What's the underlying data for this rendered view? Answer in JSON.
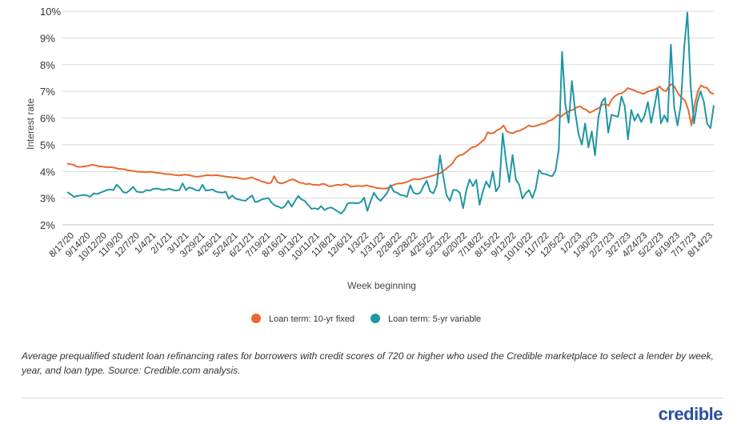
{
  "chart_data": {
    "type": "line",
    "ylabel": "Interest rate",
    "xlabel": "Week beginning",
    "ylim": [
      2,
      10
    ],
    "yticks": [
      "2%",
      "3%",
      "4%",
      "5%",
      "6%",
      "7%",
      "8%",
      "9%",
      "10%"
    ],
    "grid": true,
    "legend_position": "bottom",
    "x_tick_labels": [
      "8/17/20",
      "9/14/20",
      "10/12/20",
      "11/9/20",
      "12/7/20",
      "1/4/21",
      "2/1/21",
      "3/1/21",
      "3/29/21",
      "4/26/21",
      "5/24/21",
      "6/21/21",
      "7/19/21",
      "8/16/21",
      "9/13/21",
      "10/11/21",
      "11/8/21",
      "12/6/21",
      "1/3/22",
      "1/31/22",
      "2/28/22",
      "3/28/22",
      "4/25/22",
      "5/23/22",
      "6/20/22",
      "7/18/22",
      "8/15/22",
      "9/12/22",
      "10/10/22",
      "11/7/22",
      "12/5/22",
      "1/2/23",
      "1/30/23",
      "2/27/23",
      "3/27/23",
      "4/24/23",
      "5/22/23",
      "6/19/23",
      "7/17/23",
      "8/14/23"
    ],
    "series": [
      {
        "name": "Loan term: 10-yr fixed",
        "color": "#e8682d",
        "values": [
          4.29,
          4.25,
          4.2,
          4.22,
          4.24,
          4.2,
          4.15,
          4.12,
          4.14,
          4.06,
          4.02,
          3.98,
          3.97,
          3.98,
          3.95,
          3.93,
          3.88,
          3.86,
          3.88,
          3.84,
          3.8,
          3.82,
          3.86,
          3.85,
          3.86,
          3.83,
          3.79,
          3.77,
          3.74,
          3.72,
          3.76,
          3.69,
          3.64,
          3.58,
          3.79,
          3.55,
          3.6,
          3.68,
          3.62,
          3.54,
          3.5,
          3.52,
          3.46,
          3.47,
          3.5,
          3.5,
          3.43,
          3.46,
          3.45,
          3.48,
          3.43,
          3.38,
          3.37,
          3.36,
          3.47,
          3.55,
          3.55,
          3.62,
          3.72,
          3.7,
          3.73,
          3.8,
          3.85,
          3.92,
          4.1,
          4.28,
          4.55,
          4.62,
          4.78,
          4.93,
          4.96,
          5.15,
          5.46,
          5.42,
          5.55,
          5.72,
          5.47,
          5.45,
          5.5,
          5.58,
          5.72,
          5.68,
          5.74,
          5.78,
          5.88,
          5.92,
          6.12,
          6.05,
          6.22,
          6.32,
          6.44,
          6.31,
          6.2,
          6.38,
          6.52,
          6.46,
          6.82,
          6.92,
          7.12,
          7.04,
          6.94,
          6.98,
          7.05,
          7.18,
          7.0,
          7.28,
          6.88,
          6.65,
          5.72,
          7.22,
          7.12,
          6.94
        ],
        "points": [
          4.29,
          4.27,
          4.24,
          4.18,
          4.17,
          4.18,
          4.2,
          4.22,
          4.25,
          4.22,
          4.19,
          4.18,
          4.16,
          4.15,
          4.16,
          4.13,
          4.1,
          4.09,
          4.08,
          4.04,
          4.03,
          4.01,
          3.99,
          3.98,
          3.98,
          3.97,
          3.99,
          3.97,
          3.95,
          3.94,
          3.92,
          3.9,
          3.9,
          3.88,
          3.86,
          3.85,
          3.86,
          3.88,
          3.86,
          3.84,
          3.81,
          3.8,
          3.82,
          3.84,
          3.86,
          3.85,
          3.85,
          3.86,
          3.84,
          3.82,
          3.8,
          3.79,
          3.77,
          3.77,
          3.74,
          3.72,
          3.72,
          3.75,
          3.78,
          3.72,
          3.68,
          3.62,
          3.6,
          3.55,
          3.58,
          3.82,
          3.6,
          3.55,
          3.57,
          3.62,
          3.68,
          3.7,
          3.64,
          3.58,
          3.56,
          3.52,
          3.54,
          3.5,
          3.5,
          3.48,
          3.53,
          3.52,
          3.45,
          3.44,
          3.48,
          3.5,
          3.48,
          3.52,
          3.5,
          3.43,
          3.44,
          3.46,
          3.45,
          3.45,
          3.48,
          3.44,
          3.42,
          3.38,
          3.37,
          3.36,
          3.35,
          3.4,
          3.47,
          3.52,
          3.55,
          3.55,
          3.58,
          3.62,
          3.68,
          3.72,
          3.7,
          3.72,
          3.75,
          3.78,
          3.82,
          3.85,
          3.9,
          3.92,
          4.02,
          4.1,
          4.2,
          4.3,
          4.5,
          4.6,
          4.62,
          4.7,
          4.8,
          4.9,
          4.92,
          5.0,
          5.1,
          5.2,
          5.46,
          5.42,
          5.45,
          5.55,
          5.6,
          5.72,
          5.5,
          5.45,
          5.43,
          5.5,
          5.52,
          5.58,
          5.65,
          5.72,
          5.68,
          5.7,
          5.74,
          5.78,
          5.8,
          5.88,
          5.92,
          6.0,
          6.12,
          6.05,
          6.15,
          6.22,
          6.28,
          6.32,
          6.4,
          6.44,
          6.35,
          6.31,
          6.2,
          6.25,
          6.32,
          6.38,
          6.5,
          6.52,
          6.46,
          6.7,
          6.82,
          6.9,
          6.92,
          7.0,
          7.12,
          7.08,
          7.04,
          6.98,
          6.94,
          6.9,
          6.98,
          7.02,
          7.05,
          7.1,
          7.18,
          7.05,
          7.0,
          7.2,
          7.28,
          7.1,
          6.88,
          6.75,
          6.65,
          6.3,
          5.72,
          6.5,
          7.0,
          7.22,
          7.15,
          7.12,
          6.94,
          6.9
        ]
      },
      {
        "name": "Loan term: 5-yr variable",
        "color": "#1f96a6",
        "values": [],
        "points": [
          3.22,
          3.15,
          3.05,
          3.08,
          3.1,
          3.12,
          3.1,
          3.05,
          3.18,
          3.15,
          3.2,
          3.25,
          3.3,
          3.32,
          3.3,
          3.5,
          3.38,
          3.22,
          3.2,
          3.3,
          3.42,
          3.25,
          3.22,
          3.22,
          3.3,
          3.28,
          3.34,
          3.36,
          3.34,
          3.3,
          3.32,
          3.35,
          3.3,
          3.28,
          3.3,
          3.55,
          3.3,
          3.4,
          3.36,
          3.3,
          3.28,
          3.5,
          3.28,
          3.3,
          3.32,
          3.25,
          3.22,
          3.2,
          3.24,
          2.98,
          3.1,
          2.98,
          2.95,
          2.92,
          2.9,
          3.0,
          3.1,
          2.85,
          2.88,
          2.95,
          2.98,
          3.0,
          2.82,
          2.72,
          2.68,
          2.62,
          2.7,
          2.9,
          2.68,
          2.88,
          3.08,
          2.95,
          2.9,
          2.75,
          2.6,
          2.62,
          2.58,
          2.7,
          2.55,
          2.62,
          2.65,
          2.58,
          2.5,
          2.42,
          2.55,
          2.8,
          2.82,
          2.82,
          2.8,
          2.85,
          3.02,
          2.52,
          2.9,
          3.2,
          3.0,
          2.9,
          3.05,
          3.2,
          3.48,
          3.25,
          3.2,
          3.12,
          3.1,
          3.05,
          3.48,
          3.2,
          3.15,
          3.2,
          3.45,
          3.65,
          3.25,
          3.18,
          3.48,
          4.6,
          3.8,
          3.1,
          2.9,
          3.3,
          3.3,
          3.2,
          2.62,
          3.3,
          3.7,
          3.45,
          3.68,
          2.75,
          3.25,
          3.62,
          3.4,
          4.0,
          3.25,
          3.45,
          5.42,
          4.4,
          3.6,
          4.62,
          3.7,
          3.5,
          2.98,
          3.18,
          3.3,
          3.0,
          3.35,
          4.05,
          3.92,
          3.9,
          3.85,
          3.82,
          4.02,
          4.8,
          8.48,
          6.5,
          5.82,
          7.38,
          6.2,
          5.4,
          5.0,
          5.8,
          4.9,
          5.5,
          4.6,
          6.0,
          6.58,
          6.75,
          5.45,
          6.12,
          6.08,
          6.05,
          6.8,
          6.45,
          5.2,
          6.3,
          5.9,
          6.15,
          5.85,
          6.08,
          6.6,
          5.82,
          6.42,
          7.1,
          5.8,
          6.1,
          5.85,
          8.75,
          6.4,
          5.72,
          6.5,
          8.6,
          9.95,
          7.2,
          5.8,
          6.6,
          7.0,
          6.6,
          5.78,
          5.62,
          6.48
        ]
      }
    ]
  },
  "legend": [
    {
      "label": "Loan term: 10-yr fixed",
      "color": "#e8682d"
    },
    {
      "label": "Loan term: 5-yr variable",
      "color": "#1f96a6"
    }
  ],
  "caption": "Average prequalified student loan refinancing rates for borrowers with credit scores of 720 or higher who used the Credible marketplace to select a lender by week, year, and loan type. Source: Credible.com analysis.",
  "brand": "credible"
}
